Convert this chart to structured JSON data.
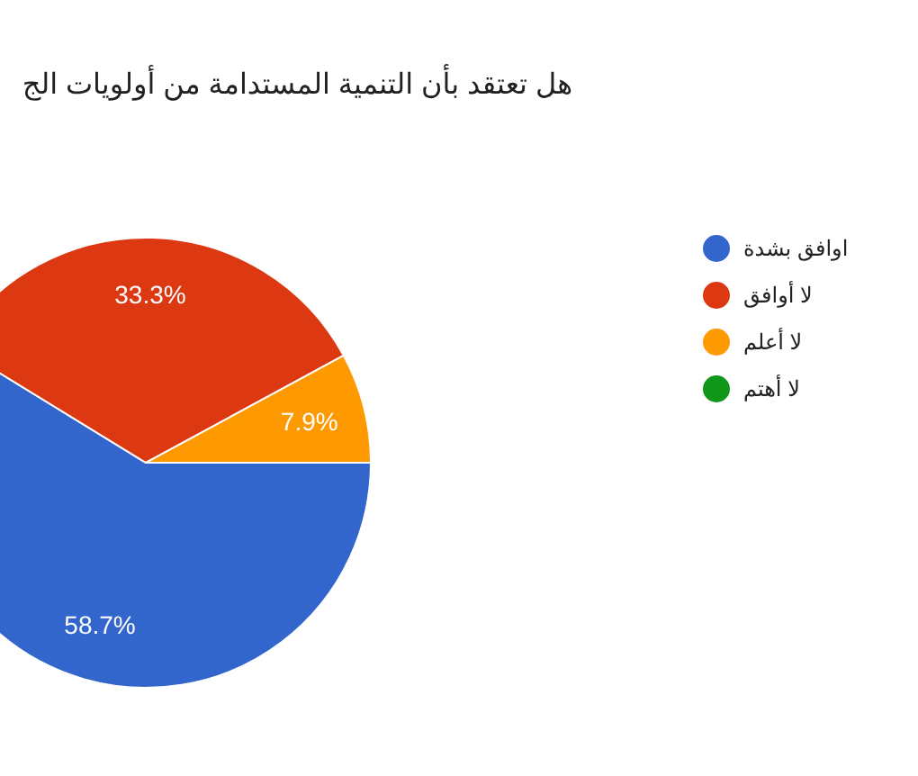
{
  "chart_data": {
    "type": "pie",
    "title": "هل تعتقد بأن التنمية المستدامة من أولويات الج",
    "categories": [
      "اوافق بشدة",
      "لا أوافق",
      "لا أعلم",
      "لا أهتم"
    ],
    "values": [
      58.7,
      33.3,
      7.9,
      0
    ],
    "colors": [
      "#3366cc",
      "#dc3912",
      "#ff9900",
      "#109618"
    ],
    "value_labels": [
      "58.7%",
      "33.3%",
      "7.9%",
      null
    ],
    "legend": "right"
  }
}
